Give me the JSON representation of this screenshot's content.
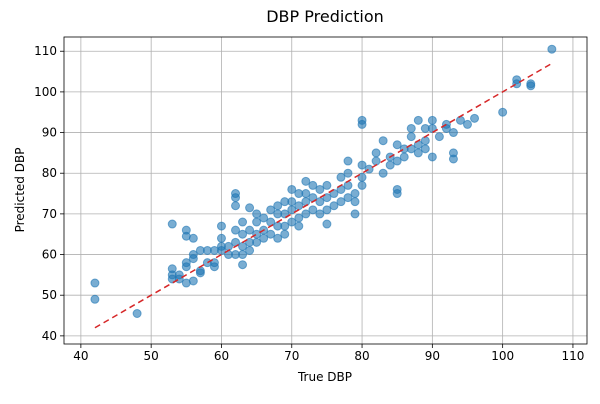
{
  "chart_data": {
    "type": "scatter",
    "title": "DBP Prediction",
    "x_label": "True DBP",
    "y_label": "Predicted DBP",
    "xlim": [
      37.6,
      112
    ],
    "ylim": [
      38,
      113.5
    ],
    "xticks": [
      40,
      50,
      60,
      70,
      80,
      90,
      100,
      110
    ],
    "yticks": [
      40,
      50,
      60,
      70,
      80,
      90,
      100,
      110
    ],
    "grid": true,
    "color": "#1f77b4",
    "x": [
      42,
      42,
      48,
      53,
      53,
      53,
      53,
      54,
      54,
      55,
      55,
      55,
      55,
      55,
      56,
      56,
      56,
      56,
      57,
      57,
      57,
      58,
      58,
      59,
      59,
      59,
      60,
      60,
      60,
      60,
      61,
      61,
      62,
      62,
      62,
      62,
      62,
      62,
      63,
      63,
      63,
      63,
      63,
      64,
      64,
      64,
      64,
      65,
      65,
      65,
      65,
      66,
      66,
      66,
      67,
      67,
      67,
      68,
      68,
      68,
      68,
      69,
      69,
      69,
      69,
      70,
      70,
      70,
      70,
      71,
      71,
      71,
      71,
      72,
      72,
      72,
      72,
      73,
      73,
      73,
      74,
      74,
      74,
      75,
      75,
      75,
      75,
      76,
      76,
      77,
      77,
      77,
      78,
      78,
      78,
      78,
      79,
      79,
      79,
      80,
      80,
      80,
      80,
      80,
      81,
      82,
      82,
      83,
      83,
      84,
      84,
      85,
      85,
      85,
      85,
      86,
      86,
      87,
      87,
      87,
      88,
      88,
      88,
      89,
      89,
      89,
      90,
      90,
      90,
      91,
      92,
      92,
      93,
      93,
      93,
      94,
      95,
      96,
      100,
      102,
      102,
      104,
      104,
      107
    ],
    "y": [
      53,
      49,
      45.5,
      67.5,
      56.5,
      55,
      54,
      54,
      55,
      66,
      64.5,
      58,
      57,
      53,
      64,
      60,
      59,
      53.5,
      61,
      56,
      55.5,
      61,
      58,
      61,
      58,
      57,
      67,
      64,
      62,
      61,
      62,
      60,
      75,
      74,
      72,
      66,
      63,
      60,
      68,
      65,
      62,
      57.5,
      60,
      71.5,
      66,
      63,
      61,
      70,
      68,
      65,
      63,
      69,
      66,
      64,
      71,
      68,
      65,
      72,
      70,
      67,
      64,
      73,
      70,
      67,
      65,
      76,
      73,
      71,
      68,
      75,
      72,
      69,
      67,
      78,
      75,
      73,
      70,
      77,
      74,
      71,
      76,
      73,
      70,
      77,
      74,
      71,
      67.5,
      75,
      72,
      79,
      76,
      73,
      83,
      80,
      77,
      74,
      75,
      70,
      73,
      93,
      92,
      82,
      79,
      77,
      81,
      85,
      83,
      88,
      80,
      84,
      82,
      87,
      83,
      76,
      75,
      86,
      84,
      91,
      89,
      86,
      93,
      87,
      85,
      91,
      88,
      86,
      93,
      91,
      84,
      89,
      92,
      91,
      90,
      85,
      83.5,
      93,
      92,
      93.5,
      95,
      103,
      102,
      102,
      101.5,
      110.5
    ],
    "reference_line": {
      "x": [
        42,
        107
      ],
      "y": [
        42,
        107
      ],
      "color": "#d62728"
    }
  }
}
